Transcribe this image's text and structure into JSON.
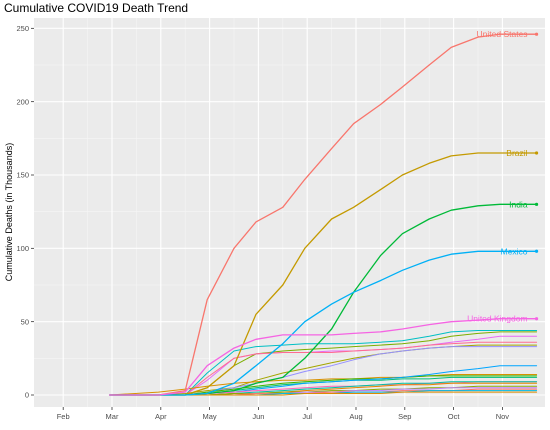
{
  "chart_data": {
    "type": "line",
    "title": "Cumulative COVID19 Death Trend",
    "xlabel": "",
    "ylabel": "Cumulative Deaths (in Thousands)",
    "x_ticks": [
      "Feb",
      "Mar",
      "Apr",
      "May",
      "Jun",
      "Jul",
      "Aug",
      "Sep",
      "Oct",
      "Nov"
    ],
    "y_ticks": [
      0,
      50,
      100,
      150,
      200,
      250
    ],
    "ylim": [
      0,
      255
    ],
    "grid": true,
    "background": "#EBEBEB",
    "legend": "none",
    "x": [
      0.95,
      1.95,
      2.5,
      2.95,
      3.5,
      3.95,
      4.5,
      4.95,
      5.5,
      5.95,
      6.5,
      6.95,
      7.5,
      7.95,
      8.5,
      8.95,
      9.5,
      9.7
    ],
    "series": [
      {
        "name": "United States",
        "color": "#F8766D",
        "label_color": "#F8766D",
        "values": [
          0,
          0,
          3,
          65,
          100,
          118,
          128,
          147,
          168,
          185,
          198,
          210,
          225,
          237,
          244,
          246,
          246,
          246
        ]
      },
      {
        "name": "Brazil",
        "color": "#C49A00",
        "label_color": "#C49A00",
        "values": [
          0,
          0,
          0,
          5,
          20,
          55,
          75,
          100,
          120,
          128,
          140,
          150,
          158,
          163,
          165,
          165,
          165,
          165
        ]
      },
      {
        "name": "India",
        "color": "#00BA38",
        "label_color": "#00BA38",
        "values": [
          0,
          0,
          0,
          1,
          3,
          8,
          12,
          25,
          45,
          70,
          95,
          110,
          120,
          126,
          129,
          130,
          130,
          130
        ]
      },
      {
        "name": "Mexico",
        "color": "#00B0F6",
        "label_color": "#00B0F6",
        "values": [
          0,
          0,
          0,
          1,
          8,
          20,
          35,
          50,
          62,
          70,
          78,
          85,
          92,
          96,
          98,
          98,
          98,
          98
        ]
      },
      {
        "name": "United Kingdom",
        "color": "#F564E3",
        "label_color": "#F564E3",
        "values": [
          0,
          0,
          2,
          20,
          32,
          38,
          41,
          41,
          41,
          42,
          43,
          45,
          48,
          50,
          51,
          52,
          52,
          52
        ]
      },
      {
        "name": "",
        "color": "#00BFC4",
        "values": [
          0,
          0,
          0,
          15,
          30,
          33,
          34,
          35,
          35,
          35,
          36,
          37,
          40,
          43,
          44,
          44,
          44,
          44
        ]
      },
      {
        "name": "",
        "color": "#7CAE00",
        "values": [
          0,
          0,
          0,
          5,
          20,
          28,
          30,
          31,
          32,
          33,
          34,
          35,
          37,
          40,
          42,
          43,
          43,
          43
        ]
      },
      {
        "name": "",
        "color": "#E76BF3",
        "values": [
          0,
          0,
          0,
          10,
          25,
          28,
          29,
          29,
          30,
          30,
          31,
          32,
          34,
          36,
          38,
          40,
          40,
          40
        ]
      },
      {
        "name": "",
        "color": "#FF6C91",
        "values": [
          0,
          0,
          0,
          12,
          25,
          28,
          29,
          29,
          29,
          30,
          31,
          32,
          34,
          35,
          36,
          36,
          36,
          36
        ]
      },
      {
        "name": "",
        "color": "#A3A500",
        "values": [
          0,
          0,
          1,
          3,
          5,
          10,
          15,
          18,
          22,
          25,
          28,
          30,
          32,
          33,
          34,
          34,
          34,
          34
        ]
      },
      {
        "name": "",
        "color": "#9590FF",
        "values": [
          0,
          0,
          0,
          2,
          5,
          8,
          12,
          16,
          20,
          24,
          28,
          30,
          32,
          33,
          33,
          33,
          33,
          33
        ]
      },
      {
        "name": "",
        "color": "#D89000",
        "values": [
          0,
          2,
          4,
          6,
          8,
          9,
          10,
          10,
          11,
          11,
          12,
          12,
          13,
          14,
          14,
          14,
          14,
          14
        ]
      },
      {
        "name": "",
        "color": "#39B600",
        "values": [
          0,
          0,
          0,
          2,
          4,
          6,
          8,
          9,
          10,
          11,
          11,
          12,
          13,
          13,
          13,
          13,
          13,
          13
        ]
      },
      {
        "name": "",
        "color": "#00BF7D",
        "values": [
          0,
          0,
          0,
          1,
          3,
          5,
          7,
          8,
          9,
          10,
          10,
          11,
          11,
          12,
          12,
          12,
          12,
          12
        ]
      },
      {
        "name": "",
        "color": "#00A5FF",
        "values": [
          0,
          0,
          0,
          1,
          2,
          4,
          6,
          8,
          9,
          10,
          11,
          12,
          14,
          16,
          18,
          20,
          20,
          20
        ]
      },
      {
        "name": "",
        "color": "#FF62BC",
        "values": [
          0,
          0,
          0,
          1,
          2,
          3,
          4,
          5,
          6,
          6,
          7,
          7,
          8,
          8,
          9,
          9,
          9,
          9
        ]
      },
      {
        "name": "",
        "color": "#00C1A3",
        "values": [
          0,
          0,
          0,
          0,
          1,
          2,
          3,
          4,
          5,
          6,
          7,
          8,
          8,
          9,
          9,
          9,
          9,
          9
        ]
      },
      {
        "name": "",
        "color": "#E58700",
        "values": [
          0,
          0,
          0,
          0,
          1,
          1,
          2,
          3,
          4,
          5,
          6,
          7,
          7,
          8,
          8,
          8,
          8,
          8
        ]
      },
      {
        "name": "",
        "color": "#8AAB00",
        "values": [
          0,
          0,
          0,
          0,
          1,
          1,
          2,
          2,
          3,
          3,
          4,
          4,
          5,
          5,
          6,
          6,
          6,
          6
        ]
      },
      {
        "name": "",
        "color": "#BF80FF",
        "values": [
          0,
          0,
          0,
          0,
          0,
          1,
          1,
          2,
          2,
          3,
          3,
          4,
          4,
          5,
          5,
          5,
          5,
          5
        ]
      },
      {
        "name": "",
        "color": "#F8766D",
        "values": [
          0,
          0,
          0,
          0,
          0,
          1,
          1,
          1,
          2,
          2,
          2,
          3,
          3,
          3,
          4,
          4,
          4,
          4
        ]
      },
      {
        "name": "",
        "color": "#00B9E3",
        "values": [
          0,
          0,
          0,
          0,
          0,
          0,
          1,
          1,
          1,
          2,
          2,
          2,
          3,
          3,
          3,
          3,
          3,
          3
        ]
      },
      {
        "name": "",
        "color": "#DE8C00",
        "values": [
          0,
          0,
          0,
          0,
          0,
          0,
          0,
          1,
          1,
          1,
          1,
          2,
          2,
          2,
          2,
          2,
          2,
          2
        ]
      }
    ]
  }
}
